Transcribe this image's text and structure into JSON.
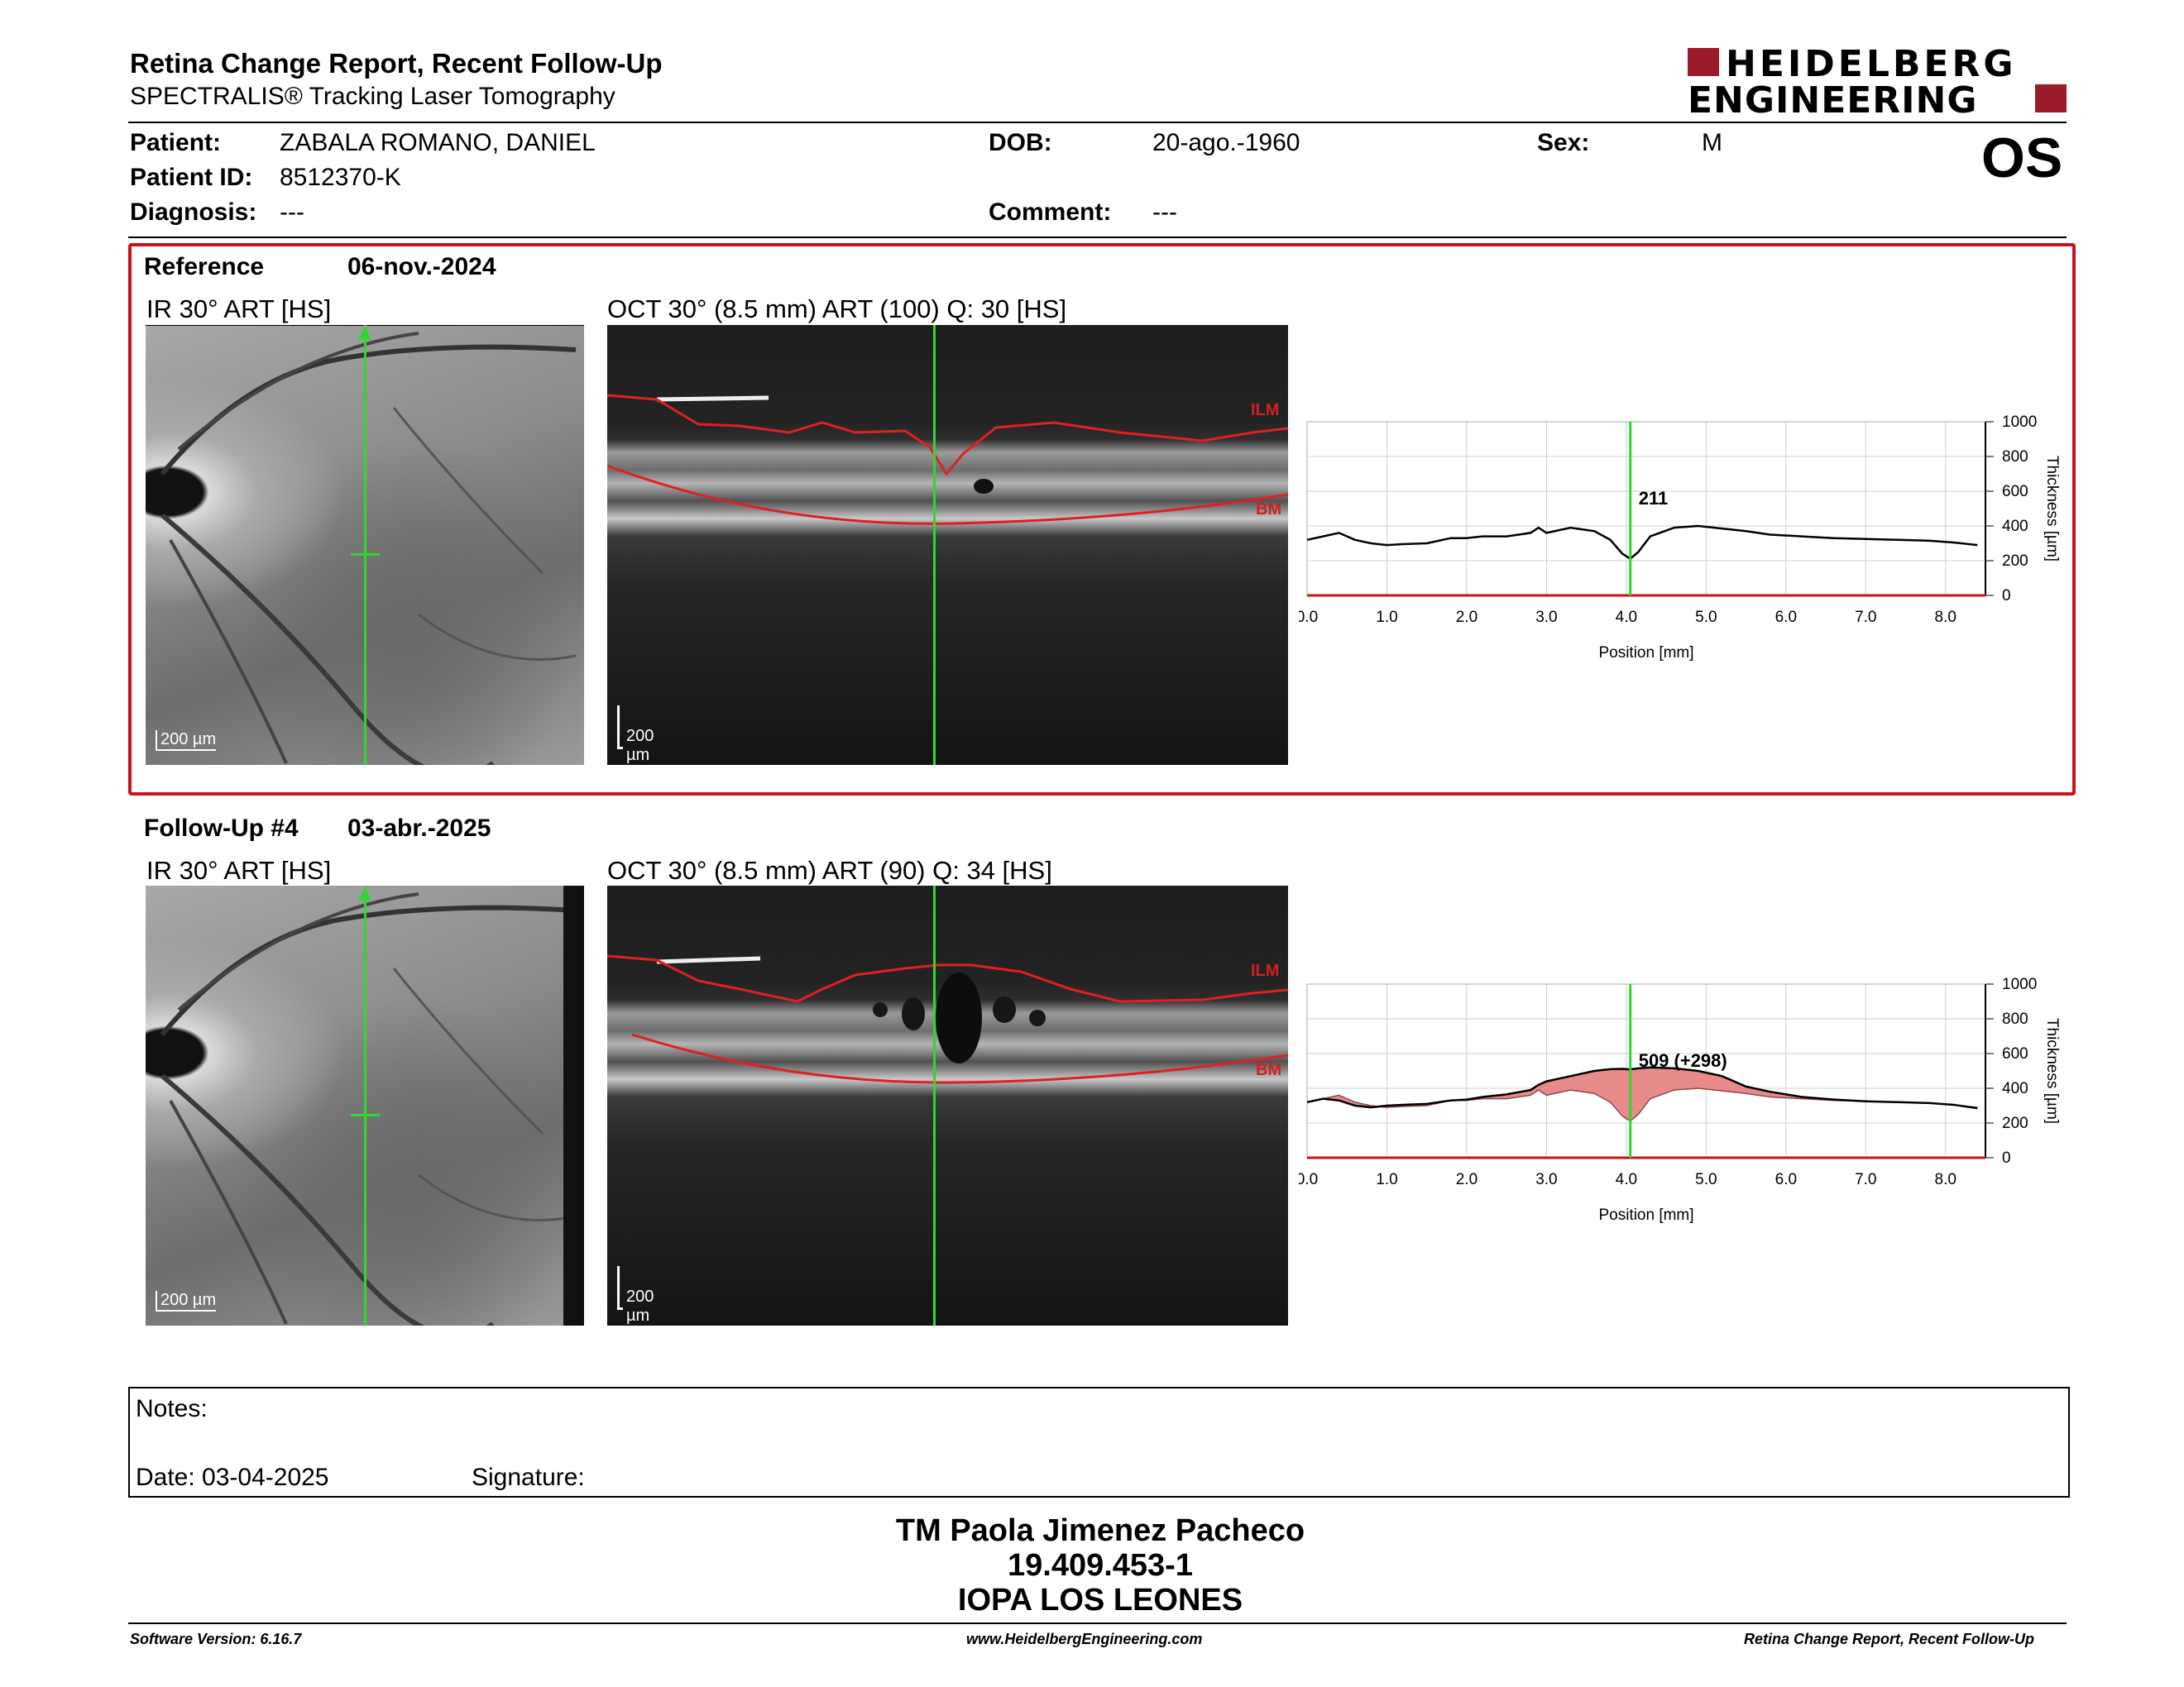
{
  "header": {
    "title": "Retina Change Report, Recent Follow-Up",
    "subtitle": "SPECTRALIS® Tracking Laser Tomography",
    "logo_line1": "HEIDELBERG",
    "logo_line2": "ENGINEERING",
    "eye": "OS"
  },
  "patient": {
    "patient_label": "Patient:",
    "patient_value": "ZABALA ROMANO, DANIEL",
    "dob_label": "DOB:",
    "dob_value": "20-ago.-1960",
    "sex_label": "Sex:",
    "sex_value": "M",
    "id_label": "Patient ID:",
    "id_value": "8512370-K",
    "diagnosis_label": "Diagnosis:",
    "diagnosis_value": "---",
    "comment_label": "Comment:",
    "comment_value": "---"
  },
  "reference": {
    "label": "Reference",
    "date": "06-nov.-2024",
    "ir_title": "IR 30° ART [HS]",
    "oct_title": "OCT 30° (8.5 mm) ART (100) Q: 30 [HS]",
    "scale_label": "200 µm",
    "ilm_label": "ILM",
    "bm_label": "BM"
  },
  "followup": {
    "label": "Follow-Up #4",
    "date": "03-abr.-2025",
    "ir_title": "IR 30° ART [HS]",
    "oct_title": "OCT 30° (8.5 mm) ART (90) Q: 34 [HS]",
    "scale_label": "200 µm",
    "ilm_label": "ILM",
    "bm_label": "BM"
  },
  "chart_data": [
    {
      "type": "line",
      "xlabel": "Position [mm]",
      "ylabel": "Thickness [µm]",
      "xlim": [
        0,
        8.5
      ],
      "ylim": [
        0,
        1000
      ],
      "x_ticks": [
        "0.0",
        "1.0",
        "2.0",
        "3.0",
        "4.0",
        "5.0",
        "6.0",
        "7.0",
        "8.0"
      ],
      "y_ticks": [
        "0",
        "200",
        "400",
        "600",
        "800",
        "1000"
      ],
      "marker_x": 4.05,
      "marker_label": "211",
      "grid": true,
      "x": [
        0.0,
        0.2,
        0.4,
        0.6,
        0.8,
        1.0,
        1.2,
        1.5,
        1.8,
        2.0,
        2.2,
        2.5,
        2.8,
        2.9,
        3.0,
        3.3,
        3.6,
        3.8,
        3.95,
        4.05,
        4.15,
        4.3,
        4.6,
        4.9,
        5.2,
        5.5,
        5.8,
        6.2,
        6.6,
        7.0,
        7.4,
        7.8,
        8.1,
        8.4
      ],
      "values": [
        320,
        340,
        360,
        320,
        300,
        290,
        295,
        300,
        330,
        330,
        340,
        340,
        360,
        390,
        360,
        390,
        370,
        320,
        240,
        211,
        250,
        340,
        390,
        400,
        385,
        370,
        350,
        340,
        330,
        325,
        320,
        315,
        305,
        290
      ]
    },
    {
      "type": "area",
      "xlabel": "Position [mm]",
      "ylabel": "Thickness [µm]",
      "xlim": [
        0,
        8.5
      ],
      "ylim": [
        0,
        1000
      ],
      "x_ticks": [
        "0.0",
        "1.0",
        "2.0",
        "3.0",
        "4.0",
        "5.0",
        "6.0",
        "7.0",
        "8.0"
      ],
      "y_ticks": [
        "0",
        "200",
        "400",
        "600",
        "800",
        "1000"
      ],
      "marker_x": 4.05,
      "marker_label": "509 (+298)",
      "grid": true,
      "x": [
        0.0,
        0.2,
        0.4,
        0.6,
        0.8,
        1.0,
        1.2,
        1.5,
        1.8,
        2.0,
        2.2,
        2.5,
        2.8,
        2.9,
        3.0,
        3.3,
        3.6,
        3.8,
        3.95,
        4.05,
        4.15,
        4.3,
        4.6,
        4.9,
        5.2,
        5.5,
        5.8,
        6.2,
        6.6,
        7.0,
        7.4,
        7.8,
        8.1,
        8.4
      ],
      "series": [
        {
          "name": "Follow-Up",
          "values": [
            320,
            340,
            330,
            300,
            290,
            300,
            305,
            310,
            330,
            335,
            350,
            365,
            390,
            420,
            440,
            470,
            500,
            510,
            512,
            509,
            515,
            520,
            515,
            500,
            470,
            410,
            380,
            350,
            335,
            325,
            320,
            315,
            305,
            285
          ]
        },
        {
          "name": "Reference",
          "values": [
            320,
            340,
            360,
            320,
            300,
            290,
            295,
            300,
            330,
            330,
            340,
            340,
            360,
            390,
            360,
            390,
            370,
            320,
            240,
            211,
            250,
            340,
            390,
            400,
            385,
            370,
            350,
            340,
            330,
            325,
            320,
            315,
            305,
            290
          ]
        }
      ],
      "fill_color": "#e78a8a"
    }
  ],
  "notes": {
    "notes_label": "Notes:",
    "date_label": "Date: 03-04-2025",
    "signature_label": "Signature:"
  },
  "signature_block": {
    "name": "TM Paola Jimenez Pacheco",
    "rut": "19.409.453-1",
    "institution": "IOPA LOS LEONES"
  },
  "footer": {
    "software": "Software Version: 6.16.7",
    "website": "www.HeidelbergEngineering.com",
    "report_name": "Retina Change Report, Recent Follow-Up"
  },
  "colors": {
    "accent_red": "#c8121a",
    "scan_green": "#31d631",
    "layer_red": "#d02020",
    "logo_red": "#9b1b2a"
  }
}
